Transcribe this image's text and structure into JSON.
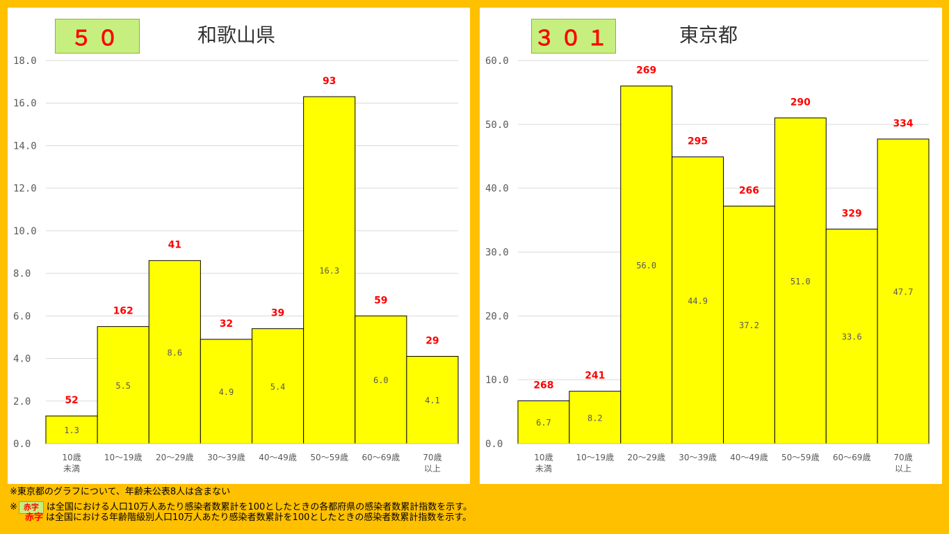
{
  "charts": [
    {
      "id": "wakayama",
      "index_value": "５０",
      "title": "和歌山県",
      "chart_data": {
        "type": "bar",
        "categories": [
          "10歳\n未満",
          "10～19歳",
          "20～29歳",
          "30～39歳",
          "40～49歳",
          "50～59歳",
          "60～69歳",
          "70歳\n以上"
        ],
        "values": [
          1.3,
          5.5,
          8.6,
          4.9,
          5.4,
          16.3,
          6.0,
          4.1
        ],
        "value_labels": [
          "1.3",
          "5.5",
          "8.6",
          "4.9",
          "5.4",
          "16.3",
          "6.0",
          "4.1"
        ],
        "top_labels": [
          "52",
          "162",
          "41",
          "32",
          "39",
          "93",
          "59",
          "29"
        ],
        "ylim": [
          0,
          18
        ],
        "yticks": [
          "0.0",
          "2.0",
          "4.0",
          "6.0",
          "8.0",
          "10.0",
          "12.0",
          "14.0",
          "16.0",
          "18.0"
        ],
        "grid": true,
        "bar_color": "#FFFF00",
        "top_label_color": "#FF0000"
      }
    },
    {
      "id": "tokyo",
      "index_value": "３０１",
      "title": "東京都",
      "chart_data": {
        "type": "bar",
        "categories": [
          "10歳\n未満",
          "10～19歳",
          "20～29歳",
          "30～39歳",
          "40～49歳",
          "50～59歳",
          "60～69歳",
          "70歳\n以上"
        ],
        "values": [
          6.7,
          8.2,
          56.0,
          44.9,
          37.2,
          51.0,
          33.6,
          47.7
        ],
        "value_labels": [
          "6.7",
          "8.2",
          "56.0",
          "44.9",
          "37.2",
          "51.0",
          "33.6",
          "47.7"
        ],
        "top_labels": [
          "268",
          "241",
          "269",
          "295",
          "266",
          "290",
          "329",
          "334"
        ],
        "ylim": [
          0,
          60
        ],
        "yticks": [
          "0.0",
          "10.0",
          "20.0",
          "30.0",
          "40.0",
          "50.0",
          "60.0"
        ],
        "grid": true,
        "bar_color": "#FFFF00",
        "top_label_color": "#FF0000"
      }
    }
  ],
  "notes": {
    "line1": "※東京都のグラフについて、年齢未公表8人は含まない",
    "line2_prefix": "※",
    "legend_box_label": "赤字",
    "line2_text": "は全国における人口10万人あたり感染者数累計を100としたときの各都府県の感染者数累計指数を示す。",
    "legend_red_label": "赤字",
    "line3_text": "は全国における年齢階級別人口10万人あたり感染者数累計を100としたときの感染者数累計指数を示す。"
  }
}
